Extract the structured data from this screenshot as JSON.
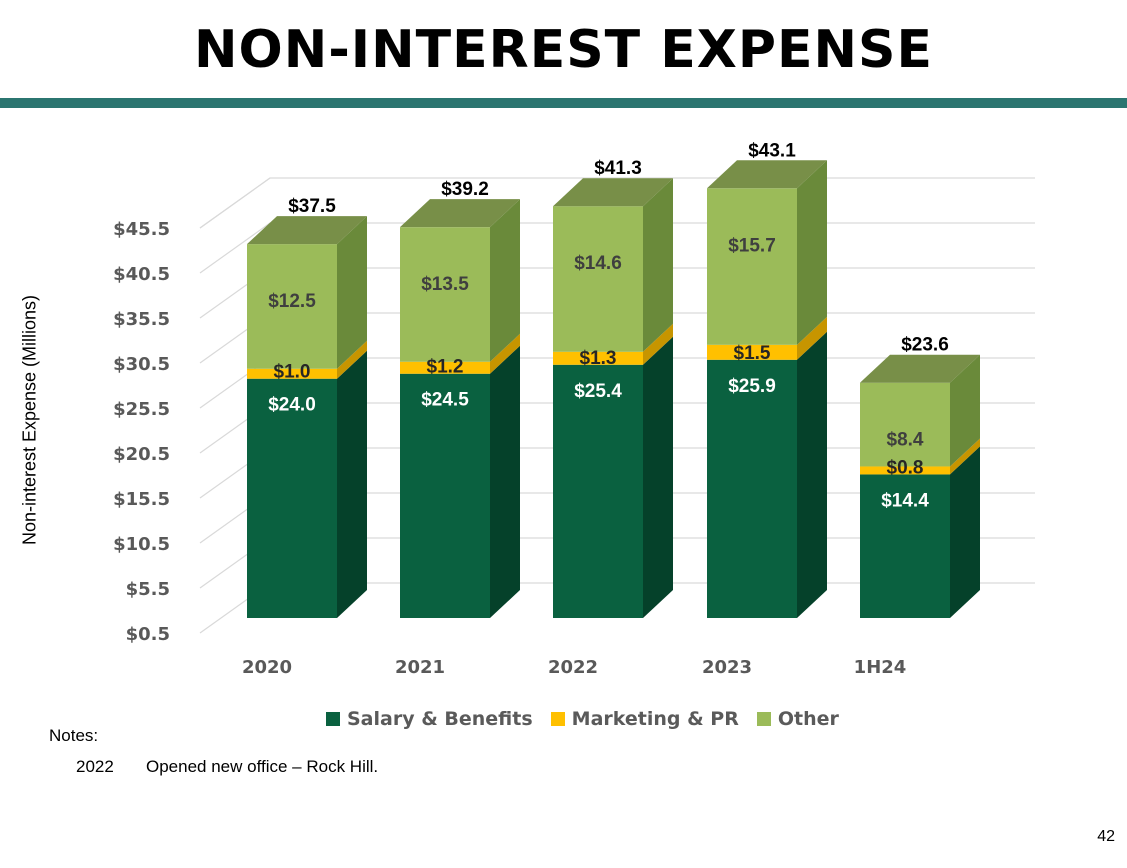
{
  "title": "NON-INTEREST EXPENSE",
  "chart_data": {
    "type": "bar",
    "stacked": true,
    "title": "",
    "ylabel": "Non-interest Expense (Millions)",
    "xlabel": "",
    "ylim": [
      0.5,
      45.5
    ],
    "yticks": [
      "$0.5",
      "$5.5",
      "$10.5",
      "$15.5",
      "$20.5",
      "$25.5",
      "$30.5",
      "$35.5",
      "$40.5",
      "$45.5"
    ],
    "ytick_values": [
      0.5,
      5.5,
      10.5,
      15.5,
      20.5,
      25.5,
      30.5,
      35.5,
      40.5,
      45.5
    ],
    "categories": [
      "2020",
      "2021",
      "2022",
      "2023",
      "1H24"
    ],
    "series": [
      {
        "name": "Salary & Benefits",
        "color": "#0a6140",
        "side_color": "#05412a",
        "top_color": "#08533a",
        "values": [
          24.0,
          24.5,
          25.4,
          25.9,
          14.4
        ],
        "labels": [
          "$24.0",
          "$24.5",
          "$25.4",
          "$25.9",
          "$14.4"
        ]
      },
      {
        "name": "Marketing & PR",
        "color": "#ffc000",
        "side_color": "#c79500",
        "top_color": "#e0aa00",
        "values": [
          1.0,
          1.2,
          1.3,
          1.5,
          0.8
        ],
        "labels": [
          "$1.0",
          "$1.2",
          "$1.3",
          "$1.5",
          "$0.8"
        ]
      },
      {
        "name": "Other",
        "color": "#9bbb59",
        "side_color": "#6a8a3a",
        "top_color": "#788f48",
        "values": [
          12.5,
          13.5,
          14.6,
          15.7,
          8.4
        ],
        "labels": [
          "$12.5",
          "$13.5",
          "$14.6",
          "$15.7",
          "$8.4"
        ]
      }
    ],
    "totals": [
      "$37.5",
      "$39.2",
      "$41.3",
      "$43.1",
      "$23.6"
    ],
    "legend_position": "bottom",
    "grid": true
  },
  "notes": {
    "heading": "Notes:",
    "items": [
      {
        "year": "2022",
        "text": "Opened new office – Rock Hill."
      }
    ]
  },
  "page_number": "42"
}
